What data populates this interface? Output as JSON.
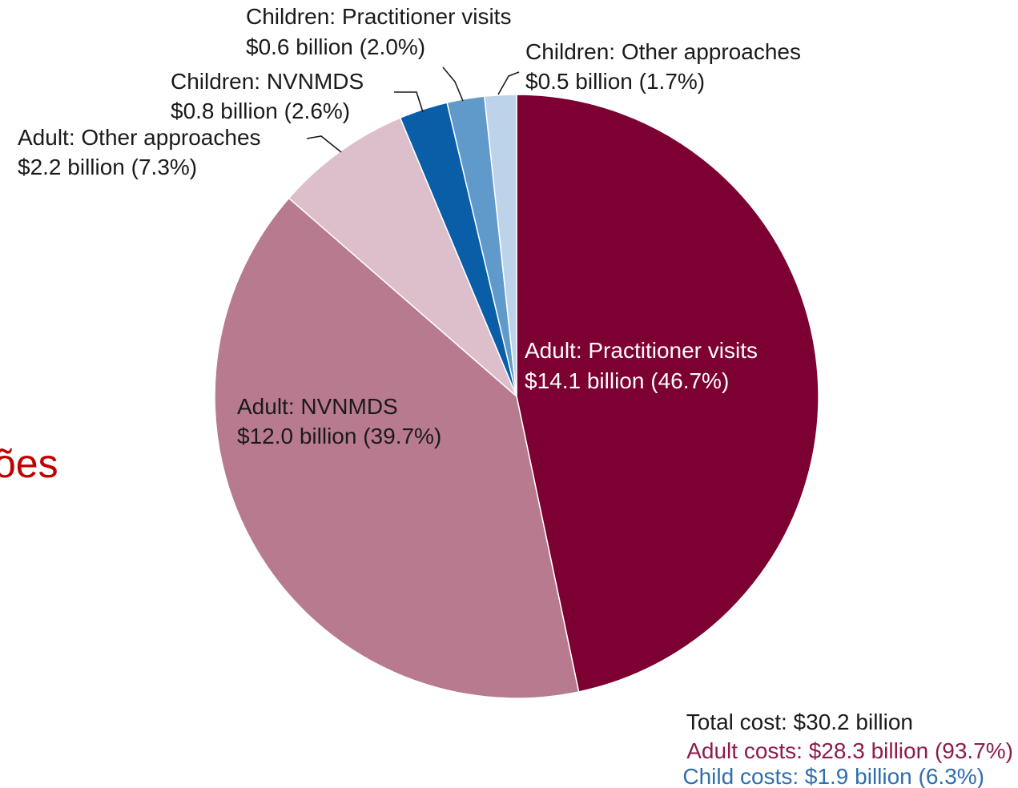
{
  "background_fragment": "ões",
  "chart_data": {
    "type": "pie",
    "title": "",
    "slices": [
      {
        "category": "Adult",
        "name": "Adult: Practitioner visits",
        "value_label": "$14.1 billion (46.7%)",
        "value": 14.1,
        "percent": 46.7,
        "color": "#7d0033"
      },
      {
        "category": "Adult",
        "name": "Adult: NVNMDS",
        "value_label": "$12.0 billion (39.7%)",
        "value": 12.0,
        "percent": 39.7,
        "color": "#b87a8e"
      },
      {
        "category": "Adult",
        "name": "Adult: Other approaches",
        "value_label": "$2.2 billion (7.3%)",
        "value": 2.2,
        "percent": 7.3,
        "color": "#dcbfca"
      },
      {
        "category": "Children",
        "name": "Children: NVNMDS",
        "value_label": "$0.8 billion (2.6%)",
        "value": 0.8,
        "percent": 2.6,
        "color": "#0a5ea8"
      },
      {
        "category": "Children",
        "name": "Children: Practitioner visits",
        "value_label": "$0.6 billion (2.0%)",
        "value": 0.6,
        "percent": 2.0,
        "color": "#5f9acb"
      },
      {
        "category": "Children",
        "name": "Children: Other approaches",
        "value_label": "$0.5 billion (1.7%)",
        "value": 0.5,
        "percent": 1.7,
        "color": "#bcd3ea"
      }
    ],
    "summary": {
      "total": "Total cost: $30.2 billion",
      "adult": "Adult costs: $28.3 billion (93.7%)",
      "child": "Child costs: $1.9 billion (6.3%)",
      "adult_color": "#8c1c4c",
      "child_color": "#2f6fae"
    }
  }
}
